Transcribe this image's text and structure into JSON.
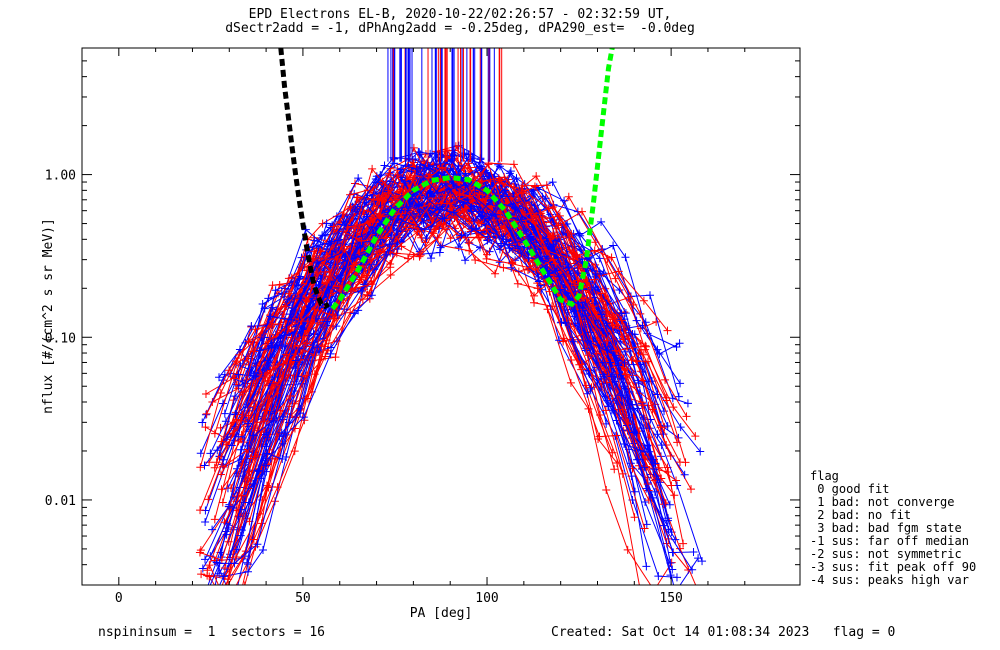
{
  "header": {
    "title_line1": "EPD Electrons EL-B, 2020-10-22/02:26:57 - 02:32:59 UT,",
    "title_line2": "dSectr2add = -1, dPhAng2add = -0.25deg, dPA290_est=  -0.0deg"
  },
  "footer": {
    "left": "nspininsum =  1  sectors = 16",
    "right": "Created: Sat Oct 14 01:08:34 2023   flag = 0"
  },
  "legend": {
    "title": "flag",
    "items": [
      " 0 good fit",
      " 1 bad: not converge",
      " 2 bad: no fit",
      " 3 bad: bad fgm state",
      "-1 sus: far off median",
      "-2 sus: not symmetric",
      "-3 sus: fit peak off 90",
      "-4 sus: peaks high var"
    ]
  },
  "colors": {
    "series_red": "#ff0000",
    "series_blue": "#0000ff",
    "fit_black": "#000000",
    "fit_green": "#00ff00",
    "axes": "#000000"
  },
  "chart_data": {
    "type": "line",
    "title": "EPD Electrons EL-B, 2020-10-22/02:26:57 - 02:32:59 UT,",
    "xlabel": "PA [deg]",
    "ylabel": "nflux [#/(cm^2 s sr MeV)]",
    "xlim": [
      -10,
      185
    ],
    "ylim": [
      0.003,
      6.0
    ],
    "yscale": "log",
    "x_ticks": [
      0,
      50,
      100,
      150
    ],
    "x_tick_labels": [
      "0",
      "50",
      "100",
      "150"
    ],
    "y_ticks": [
      0.01,
      0.1,
      1.0
    ],
    "y_tick_labels": [
      "0.01",
      "0.10",
      "1.00"
    ],
    "grid": false,
    "peak_marker_lines": {
      "x_range": [
        73,
        104
      ],
      "y_range": [
        1.2,
        6.0
      ],
      "count": 60
    },
    "fit_curves": [
      {
        "color": "black",
        "style": "dashed",
        "x": [
          44,
          45,
          46,
          47,
          48,
          49,
          50,
          51,
          52,
          53,
          54,
          55,
          56,
          57
        ],
        "y": [
          6.0,
          3.5,
          2.3,
          1.5,
          1.0,
          0.7,
          0.5,
          0.36,
          0.27,
          0.21,
          0.18,
          0.16,
          0.155,
          0.16
        ]
      },
      {
        "color": "green",
        "style": "dashed",
        "x": [
          58,
          60,
          65,
          70,
          75,
          80,
          85,
          90,
          95,
          100,
          105,
          110,
          115,
          120,
          123,
          125,
          127,
          129,
          131,
          133,
          134
        ],
        "y": [
          0.15,
          0.17,
          0.26,
          0.42,
          0.62,
          0.8,
          0.92,
          0.96,
          0.93,
          0.8,
          0.6,
          0.4,
          0.26,
          0.17,
          0.16,
          0.18,
          0.3,
          0.7,
          1.8,
          4.5,
          6.0
        ]
      }
    ],
    "series_model": {
      "red_count": 60,
      "blue_count": 60,
      "peak_x": 90,
      "peak_y_range": [
        0.45,
        1.1
      ],
      "low_x_range": [
        22,
        60
      ],
      "high_x_range": [
        120,
        160
      ],
      "low_y_range": [
        0.003,
        0.2
      ]
    }
  }
}
